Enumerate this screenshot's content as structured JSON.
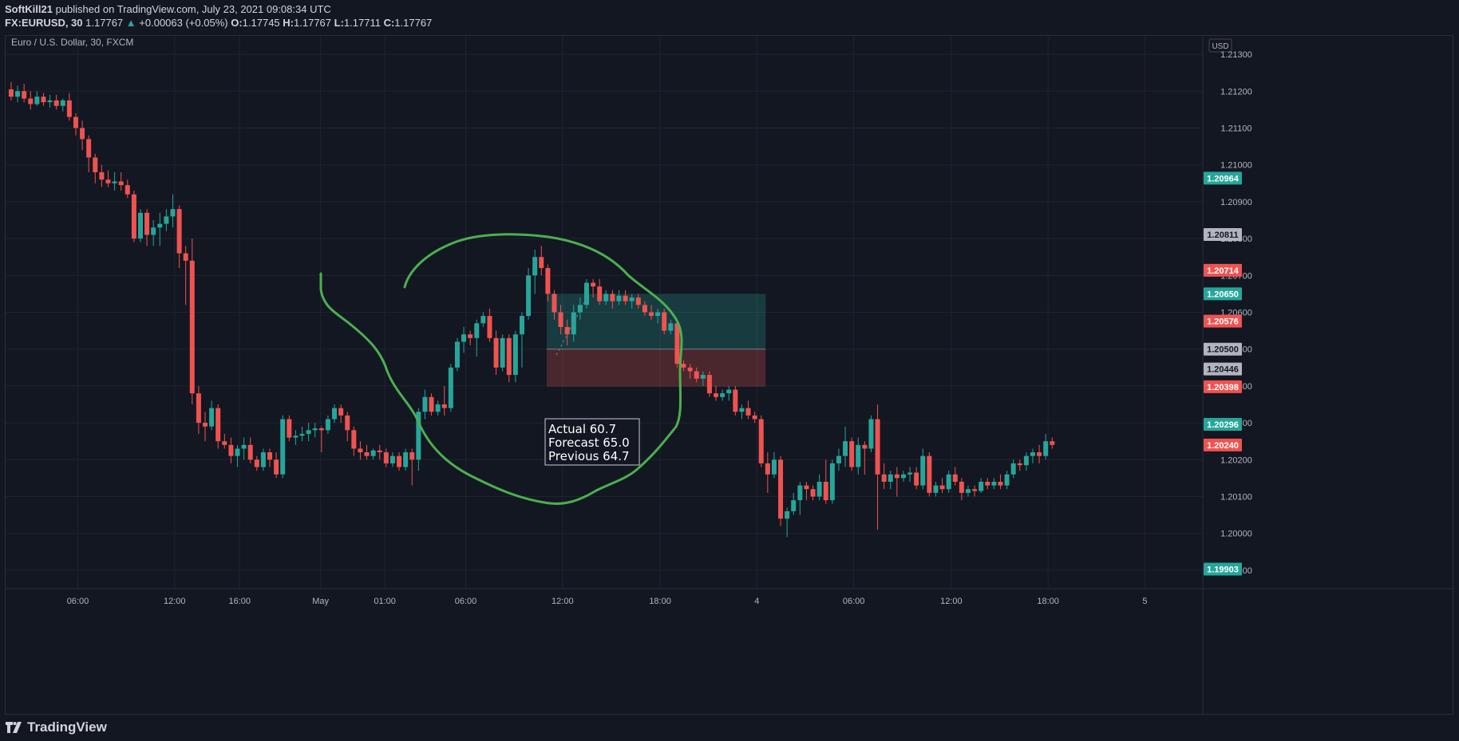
{
  "header": {
    "author": "SoftKill21",
    "published_text": "published on TradingView.com, July 23, 2021 09:08:34 UTC",
    "symbol": "FX:EURUSD, 30",
    "last": "1.17767",
    "change": "+0.00063 (+0.05%)",
    "o_label": "O:",
    "o_value": "1.17745",
    "h_label": "H:",
    "h_value": "1.17767",
    "l_label": "L:",
    "l_value": "1.17711",
    "c_label": "C:",
    "c_value": "1.17767"
  },
  "footer": {
    "brand": "TradingView",
    "logo_icon": "tradingview-logo-icon"
  },
  "chart_data": {
    "type": "candlestick",
    "title": "Euro / U.S. Dollar, 30, FXCM",
    "currency_label": "USD",
    "grid": true,
    "colors": {
      "up": "#26a69a",
      "down": "#ef5350",
      "background": "#131722",
      "grid": "#1f2430",
      "annotation": "#4caf50",
      "text": "#b2b5be"
    },
    "y_axis": {
      "range": [
        1.1985,
        1.2135
      ],
      "ticks": [
        "1.21300",
        "1.21200",
        "1.21100",
        "1.21000",
        "1.20900",
        "1.20800",
        "1.20700",
        "1.20600",
        "1.20500",
        "1.20400",
        "1.20300",
        "1.20200",
        "1.20100",
        "1.20000",
        "1.19900"
      ]
    },
    "x_axis": {
      "range": [
        -7,
        1502
      ],
      "ticks": [
        {
          "label": "06:00",
          "x": 84
        },
        {
          "label": "12:00",
          "x": 206
        },
        {
          "label": "16:00",
          "x": 288
        },
        {
          "label": "May",
          "x": 390
        },
        {
          "label": "01:00",
          "x": 471
        },
        {
          "label": "06:00",
          "x": 573
        },
        {
          "label": "12:00",
          "x": 695
        },
        {
          "label": "18:00",
          "x": 818
        },
        {
          "label": "4",
          "x": 940
        },
        {
          "label": "06:00",
          "x": 1062
        },
        {
          "label": "12:00",
          "x": 1185
        },
        {
          "label": "18:00",
          "x": 1307
        },
        {
          "label": "5",
          "x": 1429
        }
      ]
    },
    "candles": [
      {
        "o": 1.21205,
        "h": 1.21225,
        "l": 1.21175,
        "c": 1.21185
      },
      {
        "o": 1.21185,
        "h": 1.21215,
        "l": 1.2117,
        "c": 1.212
      },
      {
        "o": 1.212,
        "h": 1.2122,
        "l": 1.2117,
        "c": 1.2118
      },
      {
        "o": 1.2118,
        "h": 1.212,
        "l": 1.2115,
        "c": 1.21165
      },
      {
        "o": 1.21165,
        "h": 1.212,
        "l": 1.2116,
        "c": 1.21185
      },
      {
        "o": 1.21185,
        "h": 1.21195,
        "l": 1.2116,
        "c": 1.2117
      },
      {
        "o": 1.2117,
        "h": 1.2119,
        "l": 1.21155,
        "c": 1.21175
      },
      {
        "o": 1.21175,
        "h": 1.2119,
        "l": 1.2115,
        "c": 1.2116
      },
      {
        "o": 1.2116,
        "h": 1.2118,
        "l": 1.21145,
        "c": 1.21175
      },
      {
        "o": 1.21175,
        "h": 1.21195,
        "l": 1.2112,
        "c": 1.2113
      },
      {
        "o": 1.2113,
        "h": 1.2114,
        "l": 1.2108,
        "c": 1.211
      },
      {
        "o": 1.211,
        "h": 1.2112,
        "l": 1.2104,
        "c": 1.2107
      },
      {
        "o": 1.2107,
        "h": 1.2108,
        "l": 1.2098,
        "c": 1.2102
      },
      {
        "o": 1.2102,
        "h": 1.2103,
        "l": 1.2095,
        "c": 1.2098
      },
      {
        "o": 1.2098,
        "h": 1.21,
        "l": 1.2094,
        "c": 1.2096
      },
      {
        "o": 1.2096,
        "h": 1.20985,
        "l": 1.2094,
        "c": 1.2095
      },
      {
        "o": 1.2095,
        "h": 1.2098,
        "l": 1.2093,
        "c": 1.20955
      },
      {
        "o": 1.20955,
        "h": 1.2098,
        "l": 1.2093,
        "c": 1.20945
      },
      {
        "o": 1.20945,
        "h": 1.2096,
        "l": 1.2091,
        "c": 1.2092
      },
      {
        "o": 1.2092,
        "h": 1.2093,
        "l": 1.2079,
        "c": 1.208
      },
      {
        "o": 1.208,
        "h": 1.2088,
        "l": 1.2079,
        "c": 1.2087
      },
      {
        "o": 1.2087,
        "h": 1.2088,
        "l": 1.2078,
        "c": 1.2081
      },
      {
        "o": 1.2081,
        "h": 1.2085,
        "l": 1.2078,
        "c": 1.2083
      },
      {
        "o": 1.2083,
        "h": 1.2087,
        "l": 1.2078,
        "c": 1.2084
      },
      {
        "o": 1.2084,
        "h": 1.2088,
        "l": 1.2082,
        "c": 1.2086
      },
      {
        "o": 1.2086,
        "h": 1.2092,
        "l": 1.2083,
        "c": 1.2088
      },
      {
        "o": 1.2088,
        "h": 1.2089,
        "l": 1.2072,
        "c": 1.2076
      },
      {
        "o": 1.2076,
        "h": 1.2078,
        "l": 1.2062,
        "c": 1.2074
      },
      {
        "o": 1.2074,
        "h": 1.208,
        "l": 1.2035,
        "c": 1.2038
      },
      {
        "o": 1.2038,
        "h": 1.204,
        "l": 1.2027,
        "c": 1.203
      },
      {
        "o": 1.203,
        "h": 1.2033,
        "l": 1.2025,
        "c": 1.2029
      },
      {
        "o": 1.2029,
        "h": 1.2036,
        "l": 1.2028,
        "c": 1.2034
      },
      {
        "o": 1.2034,
        "h": 1.2035,
        "l": 1.2023,
        "c": 1.2025
      },
      {
        "o": 1.2025,
        "h": 1.2027,
        "l": 1.2023,
        "c": 1.2024
      },
      {
        "o": 1.2024,
        "h": 1.2026,
        "l": 1.2019,
        "c": 1.2021
      },
      {
        "o": 1.2021,
        "h": 1.2024,
        "l": 1.2018,
        "c": 1.2023
      },
      {
        "o": 1.2023,
        "h": 1.2026,
        "l": 1.202,
        "c": 1.2024
      },
      {
        "o": 1.2024,
        "h": 1.2026,
        "l": 1.2019,
        "c": 1.202
      },
      {
        "o": 1.202,
        "h": 1.2021,
        "l": 1.2017,
        "c": 1.2018
      },
      {
        "o": 1.2018,
        "h": 1.2023,
        "l": 1.2017,
        "c": 1.2022
      },
      {
        "o": 1.2022,
        "h": 1.2023,
        "l": 1.2018,
        "c": 1.202
      },
      {
        "o": 1.202,
        "h": 1.2022,
        "l": 1.2015,
        "c": 1.2016
      },
      {
        "o": 1.2016,
        "h": 1.2032,
        "l": 1.2015,
        "c": 1.2031
      },
      {
        "o": 1.2031,
        "h": 1.2032,
        "l": 1.2025,
        "c": 1.2026
      },
      {
        "o": 1.2026,
        "h": 1.2028,
        "l": 1.2024,
        "c": 1.20265
      },
      {
        "o": 1.20265,
        "h": 1.2029,
        "l": 1.2025,
        "c": 1.2027
      },
      {
        "o": 1.2027,
        "h": 1.203,
        "l": 1.2025,
        "c": 1.2028
      },
      {
        "o": 1.2028,
        "h": 1.203,
        "l": 1.2026,
        "c": 1.20285
      },
      {
        "o": 1.20285,
        "h": 1.2029,
        "l": 1.2022,
        "c": 1.2028
      },
      {
        "o": 1.2028,
        "h": 1.2032,
        "l": 1.2027,
        "c": 1.2031
      },
      {
        "o": 1.2031,
        "h": 1.2035,
        "l": 1.203,
        "c": 1.2034
      },
      {
        "o": 1.2034,
        "h": 1.2035,
        "l": 1.203,
        "c": 1.2032
      },
      {
        "o": 1.2032,
        "h": 1.2033,
        "l": 1.2025,
        "c": 1.2028
      },
      {
        "o": 1.2028,
        "h": 1.2029,
        "l": 1.2021,
        "c": 1.2023
      },
      {
        "o": 1.2023,
        "h": 1.2025,
        "l": 1.202,
        "c": 1.2022
      },
      {
        "o": 1.2022,
        "h": 1.2024,
        "l": 1.202,
        "c": 1.2021
      },
      {
        "o": 1.2021,
        "h": 1.2023,
        "l": 1.202,
        "c": 1.20225
      },
      {
        "o": 1.20225,
        "h": 1.2024,
        "l": 1.202,
        "c": 1.2022
      },
      {
        "o": 1.2022,
        "h": 1.2023,
        "l": 1.2018,
        "c": 1.2019
      },
      {
        "o": 1.2019,
        "h": 1.2022,
        "l": 1.2018,
        "c": 1.2021
      },
      {
        "o": 1.2021,
        "h": 1.2022,
        "l": 1.2017,
        "c": 1.2018
      },
      {
        "o": 1.2018,
        "h": 1.2023,
        "l": 1.2017,
        "c": 1.2022
      },
      {
        "o": 1.2022,
        "h": 1.2023,
        "l": 1.2013,
        "c": 1.202
      },
      {
        "o": 1.202,
        "h": 1.2034,
        "l": 1.2017,
        "c": 1.2033
      },
      {
        "o": 1.2033,
        "h": 1.2039,
        "l": 1.2031,
        "c": 1.2037
      },
      {
        "o": 1.2037,
        "h": 1.2038,
        "l": 1.2032,
        "c": 1.2033
      },
      {
        "o": 1.2033,
        "h": 1.2036,
        "l": 1.2032,
        "c": 1.2035
      },
      {
        "o": 1.2035,
        "h": 1.204,
        "l": 1.2032,
        "c": 1.2034
      },
      {
        "o": 1.2034,
        "h": 1.2046,
        "l": 1.2033,
        "c": 1.2045
      },
      {
        "o": 1.2045,
        "h": 1.2053,
        "l": 1.2044,
        "c": 1.2052
      },
      {
        "o": 1.2052,
        "h": 1.2056,
        "l": 1.2049,
        "c": 1.2054
      },
      {
        "o": 1.2054,
        "h": 1.2055,
        "l": 1.2051,
        "c": 1.2053
      },
      {
        "o": 1.2053,
        "h": 1.2058,
        "l": 1.2048,
        "c": 1.2057
      },
      {
        "o": 1.2057,
        "h": 1.206,
        "l": 1.2056,
        "c": 1.2059
      },
      {
        "o": 1.2059,
        "h": 1.2061,
        "l": 1.2052,
        "c": 1.2053
      },
      {
        "o": 1.2053,
        "h": 1.2055,
        "l": 1.2043,
        "c": 1.2045
      },
      {
        "o": 1.2045,
        "h": 1.2054,
        "l": 1.2044,
        "c": 1.2053
      },
      {
        "o": 1.2053,
        "h": 1.2054,
        "l": 1.2041,
        "c": 1.2043
      },
      {
        "o": 1.2043,
        "h": 1.2055,
        "l": 1.2041,
        "c": 1.2054
      },
      {
        "o": 1.2054,
        "h": 1.206,
        "l": 1.2045,
        "c": 1.2059
      },
      {
        "o": 1.2059,
        "h": 1.2072,
        "l": 1.2058,
        "c": 1.207
      },
      {
        "o": 1.207,
        "h": 1.2077,
        "l": 1.2065,
        "c": 1.2075
      },
      {
        "o": 1.2075,
        "h": 1.2078,
        "l": 1.207,
        "c": 1.2072
      },
      {
        "o": 1.2072,
        "h": 1.2073,
        "l": 1.2063,
        "c": 1.2065
      },
      {
        "o": 1.2065,
        "h": 1.2066,
        "l": 1.2058,
        "c": 1.206
      },
      {
        "o": 1.206,
        "h": 1.2062,
        "l": 1.2054,
        "c": 1.2056
      },
      {
        "o": 1.2056,
        "h": 1.2058,
        "l": 1.2051,
        "c": 1.2054
      },
      {
        "o": 1.2054,
        "h": 1.2062,
        "l": 1.2052,
        "c": 1.206
      },
      {
        "o": 1.206,
        "h": 1.2064,
        "l": 1.2058,
        "c": 1.2062
      },
      {
        "o": 1.2062,
        "h": 1.2069,
        "l": 1.2061,
        "c": 1.2068
      },
      {
        "o": 1.2068,
        "h": 1.2069,
        "l": 1.2064,
        "c": 1.2067
      },
      {
        "o": 1.2067,
        "h": 1.2069,
        "l": 1.2062,
        "c": 1.2063
      },
      {
        "o": 1.2063,
        "h": 1.2066,
        "l": 1.2062,
        "c": 1.2065
      },
      {
        "o": 1.2065,
        "h": 1.2066,
        "l": 1.2061,
        "c": 1.2063
      },
      {
        "o": 1.2063,
        "h": 1.2066,
        "l": 1.2062,
        "c": 1.20645
      },
      {
        "o": 1.20645,
        "h": 1.2066,
        "l": 1.2062,
        "c": 1.2063
      },
      {
        "o": 1.2063,
        "h": 1.2065,
        "l": 1.2061,
        "c": 1.2064
      },
      {
        "o": 1.2064,
        "h": 1.2065,
        "l": 1.2061,
        "c": 1.2062
      },
      {
        "o": 1.2062,
        "h": 1.2063,
        "l": 1.2059,
        "c": 1.206
      },
      {
        "o": 1.206,
        "h": 1.2062,
        "l": 1.2058,
        "c": 1.2059
      },
      {
        "o": 1.2059,
        "h": 1.2061,
        "l": 1.2057,
        "c": 1.206
      },
      {
        "o": 1.206,
        "h": 1.2061,
        "l": 1.2054,
        "c": 1.2055
      },
      {
        "o": 1.2055,
        "h": 1.2058,
        "l": 1.2054,
        "c": 1.2057
      },
      {
        "o": 1.2057,
        "h": 1.2058,
        "l": 1.2045,
        "c": 1.2046
      },
      {
        "o": 1.2046,
        "h": 1.2047,
        "l": 1.2044,
        "c": 1.2045
      },
      {
        "o": 1.2045,
        "h": 1.2046,
        "l": 1.2042,
        "c": 1.2044
      },
      {
        "o": 1.2044,
        "h": 1.2045,
        "l": 1.2041,
        "c": 1.2042
      },
      {
        "o": 1.2042,
        "h": 1.2044,
        "l": 1.204,
        "c": 1.2043
      },
      {
        "o": 1.2043,
        "h": 1.2044,
        "l": 1.2037,
        "c": 1.2038
      },
      {
        "o": 1.2038,
        "h": 1.204,
        "l": 1.2036,
        "c": 1.2037
      },
      {
        "o": 1.2037,
        "h": 1.2039,
        "l": 1.2036,
        "c": 1.2038
      },
      {
        "o": 1.2038,
        "h": 1.204,
        "l": 1.2036,
        "c": 1.2039
      },
      {
        "o": 1.2039,
        "h": 1.204,
        "l": 1.2032,
        "c": 1.2033
      },
      {
        "o": 1.2033,
        "h": 1.2035,
        "l": 1.2031,
        "c": 1.2034
      },
      {
        "o": 1.2034,
        "h": 1.2036,
        "l": 1.2031,
        "c": 1.2032
      },
      {
        "o": 1.2032,
        "h": 1.2033,
        "l": 1.203,
        "c": 1.2031
      },
      {
        "o": 1.2031,
        "h": 1.2032,
        "l": 1.2018,
        "c": 1.2019
      },
      {
        "o": 1.2019,
        "h": 1.2022,
        "l": 1.2011,
        "c": 1.2016
      },
      {
        "o": 1.2016,
        "h": 1.2022,
        "l": 1.2015,
        "c": 1.202
      },
      {
        "o": 1.202,
        "h": 1.2021,
        "l": 1.2002,
        "c": 1.2004
      },
      {
        "o": 1.2004,
        "h": 1.2007,
        "l": 1.1999,
        "c": 1.2006
      },
      {
        "o": 1.2006,
        "h": 1.2011,
        "l": 1.2005,
        "c": 1.2009
      },
      {
        "o": 1.2009,
        "h": 1.2014,
        "l": 1.2005,
        "c": 1.2013
      },
      {
        "o": 1.2013,
        "h": 1.2014,
        "l": 1.2009,
        "c": 1.2012
      },
      {
        "o": 1.2012,
        "h": 1.2013,
        "l": 1.2009,
        "c": 1.201
      },
      {
        "o": 1.201,
        "h": 1.2016,
        "l": 1.2009,
        "c": 1.2014
      },
      {
        "o": 1.2014,
        "h": 1.202,
        "l": 1.2008,
        "c": 1.2009
      },
      {
        "o": 1.2009,
        "h": 1.202,
        "l": 1.2008,
        "c": 1.2019
      },
      {
        "o": 1.2019,
        "h": 1.2023,
        "l": 1.2017,
        "c": 1.2021
      },
      {
        "o": 1.2021,
        "h": 1.2029,
        "l": 1.2018,
        "c": 1.2025
      },
      {
        "o": 1.2025,
        "h": 1.2026,
        "l": 1.2017,
        "c": 1.2018
      },
      {
        "o": 1.2018,
        "h": 1.2026,
        "l": 1.2016,
        "c": 1.2024
      },
      {
        "o": 1.2024,
        "h": 1.2025,
        "l": 1.2016,
        "c": 1.2023
      },
      {
        "o": 1.2023,
        "h": 1.2032,
        "l": 1.2022,
        "c": 1.2031
      },
      {
        "o": 1.2031,
        "h": 1.2035,
        "l": 1.2001,
        "c": 1.2016
      },
      {
        "o": 1.2016,
        "h": 1.2019,
        "l": 1.2012,
        "c": 1.2014
      },
      {
        "o": 1.2014,
        "h": 1.2017,
        "l": 1.2012,
        "c": 1.2016
      },
      {
        "o": 1.2016,
        "h": 1.2018,
        "l": 1.201,
        "c": 1.2015
      },
      {
        "o": 1.2015,
        "h": 1.2017,
        "l": 1.2014,
        "c": 1.2016
      },
      {
        "o": 1.2016,
        "h": 1.2018,
        "l": 1.2014,
        "c": 1.20165
      },
      {
        "o": 1.20165,
        "h": 1.2018,
        "l": 1.2012,
        "c": 1.2013
      },
      {
        "o": 1.2013,
        "h": 1.2023,
        "l": 1.2012,
        "c": 1.2021
      },
      {
        "o": 1.2021,
        "h": 1.2022,
        "l": 1.201,
        "c": 1.2011
      },
      {
        "o": 1.2011,
        "h": 1.2014,
        "l": 1.201,
        "c": 1.2013
      },
      {
        "o": 1.2013,
        "h": 1.2015,
        "l": 1.2011,
        "c": 1.2012
      },
      {
        "o": 1.2012,
        "h": 1.2017,
        "l": 1.2011,
        "c": 1.2016
      },
      {
        "o": 1.2016,
        "h": 1.2018,
        "l": 1.2013,
        "c": 1.2014
      },
      {
        "o": 1.2014,
        "h": 1.2015,
        "l": 1.2009,
        "c": 1.2011
      },
      {
        "o": 1.2011,
        "h": 1.2013,
        "l": 1.201,
        "c": 1.2012
      },
      {
        "o": 1.2012,
        "h": 1.2013,
        "l": 1.201,
        "c": 1.20115
      },
      {
        "o": 1.20115,
        "h": 1.2015,
        "l": 1.2011,
        "c": 1.2014
      },
      {
        "o": 1.2014,
        "h": 1.2015,
        "l": 1.2012,
        "c": 1.2013
      },
      {
        "o": 1.2013,
        "h": 1.2015,
        "l": 1.2012,
        "c": 1.2014
      },
      {
        "o": 1.2014,
        "h": 1.2016,
        "l": 1.2012,
        "c": 1.2013
      },
      {
        "o": 1.2013,
        "h": 1.2017,
        "l": 1.2012,
        "c": 1.2016
      },
      {
        "o": 1.2016,
        "h": 1.202,
        "l": 1.2015,
        "c": 1.2019
      },
      {
        "o": 1.2019,
        "h": 1.202,
        "l": 1.2017,
        "c": 1.20185
      },
      {
        "o": 1.20185,
        "h": 1.2022,
        "l": 1.2017,
        "c": 1.2021
      },
      {
        "o": 1.2021,
        "h": 1.2023,
        "l": 1.2019,
        "c": 1.2022
      },
      {
        "o": 1.2022,
        "h": 1.2024,
        "l": 1.2019,
        "c": 1.2021
      },
      {
        "o": 1.2021,
        "h": 1.2027,
        "l": 1.202,
        "c": 1.2025
      },
      {
        "o": 1.2025,
        "h": 1.2026,
        "l": 1.2023,
        "c": 1.2024
      }
    ],
    "position_tool": {
      "x_range": [
        675,
        951
      ],
      "entry": 1.205,
      "target": 1.2065,
      "stop": 1.20398,
      "target_color": "#26a69a",
      "stop_color": "#ef5350"
    },
    "annotations": [
      {
        "type": "text_box",
        "lines": [
          "Actual 60.7",
          "Forecast 65.0",
          "Previous 64.7"
        ],
        "anchor_x": 676,
        "anchor_price": 1.2034
      }
    ],
    "price_labels": [
      {
        "value": "1.20964",
        "price": 1.20964,
        "color": "#26a69a"
      },
      {
        "value": "1.20811",
        "price": 1.20811,
        "color": "#b2b5be"
      },
      {
        "value": "1.20714",
        "price": 1.20714,
        "color": "#ef5350"
      },
      {
        "value": "1.20650",
        "price": 1.2065,
        "color": "#26a69a"
      },
      {
        "value": "1.20576",
        "price": 1.20576,
        "color": "#ef5350"
      },
      {
        "value": "1.20500",
        "price": 1.205,
        "color": "#b2b5be"
      },
      {
        "value": "1.20446",
        "price": 1.20446,
        "color": "#b2b5be"
      },
      {
        "value": "1.20398",
        "price": 1.20398,
        "color": "#ef5350"
      },
      {
        "value": "1.20296",
        "price": 1.20296,
        "color": "#26a69a"
      },
      {
        "value": "1.20240",
        "price": 1.2024,
        "color": "#ef5350"
      },
      {
        "value": "1.19903",
        "price": 1.19903,
        "color": "#26a69a"
      }
    ]
  }
}
